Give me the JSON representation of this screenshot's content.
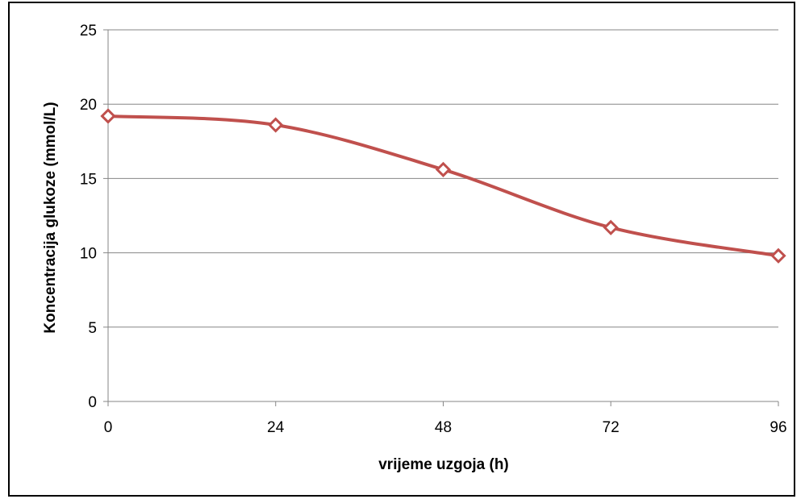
{
  "chart_data": {
    "type": "line",
    "xlabel": "vrijeme uzgoja (h)",
    "ylabel": "Koncentracija glukoze (mmol/L)",
    "x": [
      0,
      24,
      48,
      72,
      96
    ],
    "x_ticks": [
      "0",
      "24",
      "48",
      "72",
      "96"
    ],
    "y_ticks": [
      "0",
      "5",
      "10",
      "15",
      "20",
      "25"
    ],
    "xlim": [
      0,
      96
    ],
    "ylim": [
      0,
      25
    ],
    "grid": "horizontal",
    "legend": "none",
    "series": [
      {
        "values": [
          19.2,
          18.6,
          15.6,
          11.7,
          9.8
        ],
        "color": "#c0504d",
        "marker": "diamond",
        "smooth": true
      }
    ]
  }
}
